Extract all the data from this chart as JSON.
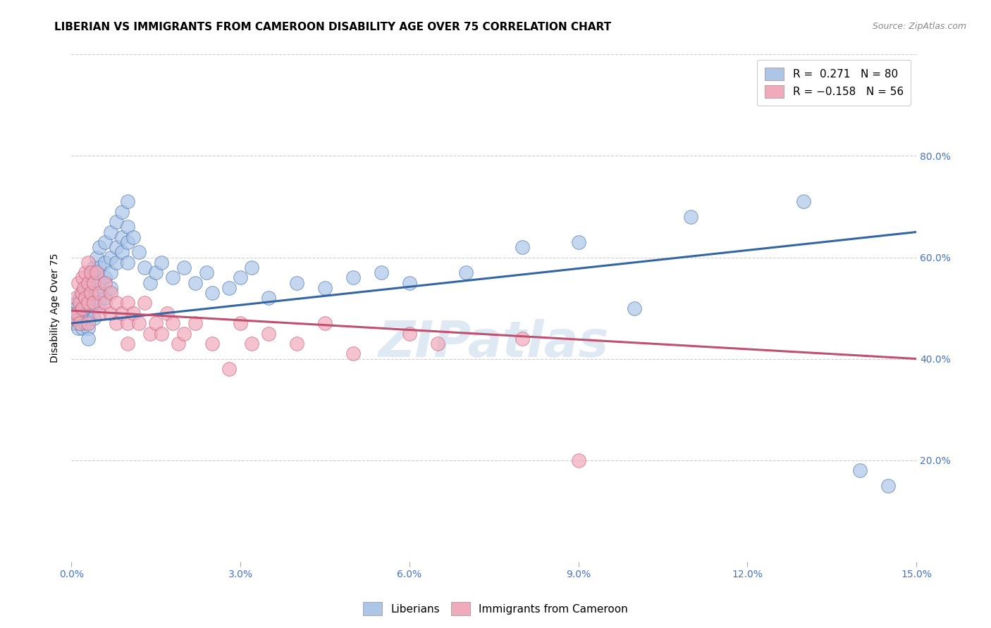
{
  "title": "LIBERIAN VS IMMIGRANTS FROM CAMEROON DISABILITY AGE OVER 75 CORRELATION CHART",
  "source": "Source: ZipAtlas.com",
  "ylabel": "Disability Age Over 75",
  "watermark": "ZIPatlas",
  "xlim": [
    0.0,
    15.0
  ],
  "ylim": [
    0.0,
    100.0
  ],
  "yticks": [
    20.0,
    40.0,
    60.0,
    80.0
  ],
  "xticks": [
    0.0,
    3.0,
    6.0,
    9.0,
    12.0,
    15.0
  ],
  "color_blue": "#adc6e8",
  "color_pink": "#f0aabb",
  "line_blue": "#3465a4",
  "line_pink": "#c05070",
  "blue_scatter": [
    [
      0.05,
      47
    ],
    [
      0.05,
      49
    ],
    [
      0.08,
      48
    ],
    [
      0.08,
      50
    ],
    [
      0.1,
      51
    ],
    [
      0.1,
      47
    ],
    [
      0.12,
      49
    ],
    [
      0.12,
      46
    ],
    [
      0.15,
      52
    ],
    [
      0.15,
      48
    ],
    [
      0.18,
      50
    ],
    [
      0.18,
      47
    ],
    [
      0.2,
      53
    ],
    [
      0.2,
      49
    ],
    [
      0.2,
      46
    ],
    [
      0.22,
      51
    ],
    [
      0.25,
      54
    ],
    [
      0.25,
      50
    ],
    [
      0.25,
      47
    ],
    [
      0.3,
      55
    ],
    [
      0.3,
      52
    ],
    [
      0.3,
      49
    ],
    [
      0.3,
      46
    ],
    [
      0.3,
      44
    ],
    [
      0.35,
      57
    ],
    [
      0.35,
      53
    ],
    [
      0.35,
      50
    ],
    [
      0.4,
      58
    ],
    [
      0.4,
      55
    ],
    [
      0.4,
      52
    ],
    [
      0.4,
      48
    ],
    [
      0.45,
      60
    ],
    [
      0.45,
      56
    ],
    [
      0.45,
      53
    ],
    [
      0.5,
      62
    ],
    [
      0.5,
      58
    ],
    [
      0.5,
      55
    ],
    [
      0.5,
      51
    ],
    [
      0.6,
      63
    ],
    [
      0.6,
      59
    ],
    [
      0.6,
      56
    ],
    [
      0.6,
      52
    ],
    [
      0.7,
      65
    ],
    [
      0.7,
      60
    ],
    [
      0.7,
      57
    ],
    [
      0.7,
      54
    ],
    [
      0.8,
      67
    ],
    [
      0.8,
      62
    ],
    [
      0.8,
      59
    ],
    [
      0.9,
      69
    ],
    [
      0.9,
      64
    ],
    [
      0.9,
      61
    ],
    [
      1.0,
      71
    ],
    [
      1.0,
      66
    ],
    [
      1.0,
      63
    ],
    [
      1.0,
      59
    ],
    [
      1.1,
      64
    ],
    [
      1.2,
      61
    ],
    [
      1.3,
      58
    ],
    [
      1.4,
      55
    ],
    [
      1.5,
      57
    ],
    [
      1.6,
      59
    ],
    [
      1.8,
      56
    ],
    [
      2.0,
      58
    ],
    [
      2.2,
      55
    ],
    [
      2.4,
      57
    ],
    [
      2.5,
      53
    ],
    [
      2.8,
      54
    ],
    [
      3.0,
      56
    ],
    [
      3.2,
      58
    ],
    [
      3.5,
      52
    ],
    [
      4.0,
      55
    ],
    [
      4.5,
      54
    ],
    [
      5.0,
      56
    ],
    [
      5.5,
      57
    ],
    [
      6.0,
      55
    ],
    [
      7.0,
      57
    ],
    [
      8.0,
      62
    ],
    [
      9.0,
      63
    ],
    [
      10.0,
      50
    ],
    [
      11.0,
      68
    ],
    [
      13.0,
      71
    ],
    [
      14.0,
      18
    ],
    [
      14.5,
      15
    ]
  ],
  "pink_scatter": [
    [
      0.05,
      48
    ],
    [
      0.08,
      52
    ],
    [
      0.1,
      49
    ],
    [
      0.12,
      55
    ],
    [
      0.15,
      51
    ],
    [
      0.15,
      47
    ],
    [
      0.18,
      53
    ],
    [
      0.2,
      56
    ],
    [
      0.2,
      50
    ],
    [
      0.22,
      54
    ],
    [
      0.25,
      57
    ],
    [
      0.25,
      52
    ],
    [
      0.3,
      59
    ],
    [
      0.3,
      55
    ],
    [
      0.3,
      51
    ],
    [
      0.3,
      47
    ],
    [
      0.35,
      57
    ],
    [
      0.35,
      53
    ],
    [
      0.4,
      55
    ],
    [
      0.4,
      51
    ],
    [
      0.45,
      57
    ],
    [
      0.5,
      53
    ],
    [
      0.5,
      49
    ],
    [
      0.6,
      55
    ],
    [
      0.6,
      51
    ],
    [
      0.7,
      53
    ],
    [
      0.7,
      49
    ],
    [
      0.8,
      51
    ],
    [
      0.8,
      47
    ],
    [
      0.9,
      49
    ],
    [
      1.0,
      51
    ],
    [
      1.0,
      47
    ],
    [
      1.0,
      43
    ],
    [
      1.1,
      49
    ],
    [
      1.2,
      47
    ],
    [
      1.3,
      51
    ],
    [
      1.4,
      45
    ],
    [
      1.5,
      47
    ],
    [
      1.6,
      45
    ],
    [
      1.7,
      49
    ],
    [
      1.8,
      47
    ],
    [
      1.9,
      43
    ],
    [
      2.0,
      45
    ],
    [
      2.2,
      47
    ],
    [
      2.5,
      43
    ],
    [
      2.8,
      38
    ],
    [
      3.0,
      47
    ],
    [
      3.2,
      43
    ],
    [
      3.5,
      45
    ],
    [
      4.0,
      43
    ],
    [
      4.5,
      47
    ],
    [
      5.0,
      41
    ],
    [
      6.0,
      45
    ],
    [
      6.5,
      43
    ],
    [
      8.0,
      44
    ],
    [
      9.0,
      20
    ]
  ],
  "blue_line_x": [
    0.0,
    15.0
  ],
  "blue_line_y": [
    47.0,
    65.0
  ],
  "pink_line_x": [
    0.0,
    15.0
  ],
  "pink_line_y": [
    49.5,
    40.0
  ],
  "bg_color": "#ffffff",
  "grid_color": "#cccccc",
  "title_fontsize": 11,
  "tick_color": "#4472c4"
}
